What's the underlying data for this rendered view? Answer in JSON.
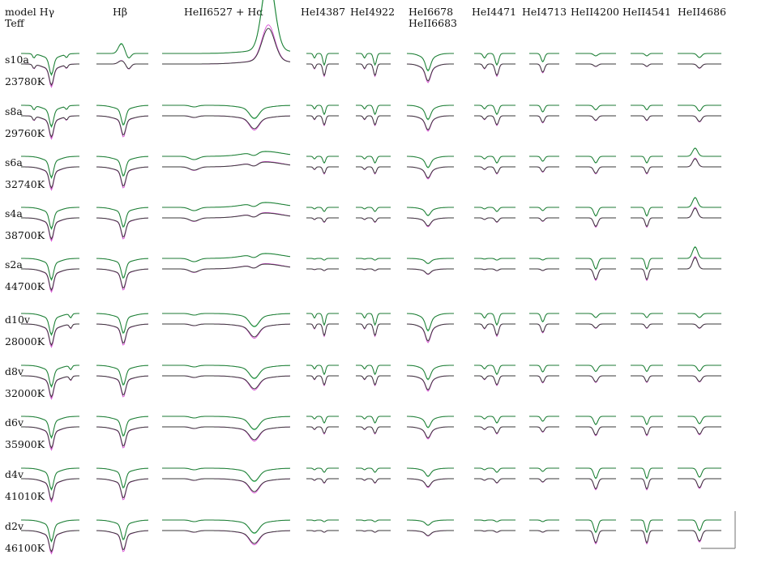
{
  "header": {
    "col0_line1": "model Hγ",
    "col0_line2": "Teff",
    "columns": [
      {
        "key": "hb",
        "label": "Hβ"
      },
      {
        "key": "ha",
        "label": "HeII6527 + Hα"
      },
      {
        "key": "he4387",
        "label": "HeI4387"
      },
      {
        "key": "he4922",
        "label": "HeI4922"
      },
      {
        "key": "he6678",
        "label": "HeI6678",
        "label2": "HeII6683"
      },
      {
        "key": "he4471",
        "label": "HeI4471"
      },
      {
        "key": "he4713",
        "label": "HeI4713"
      },
      {
        "key": "heii4200",
        "label": "HeII4200"
      },
      {
        "key": "heii4541",
        "label": "HeII4541"
      },
      {
        "key": "heii4686",
        "label": "HeII4686"
      }
    ]
  },
  "rows": [
    {
      "model": "s10a",
      "teff": "23780K"
    },
    {
      "model": "s8a",
      "teff": "29760K"
    },
    {
      "model": "s6a",
      "teff": "32740K"
    },
    {
      "model": "s4a",
      "teff": "38700K"
    },
    {
      "model": "s2a",
      "teff": "44700K"
    },
    {
      "model": "d10v",
      "teff": "28000K"
    },
    {
      "model": "d8v",
      "teff": "32000K"
    },
    {
      "model": "d6v",
      "teff": "35900K"
    },
    {
      "model": "d4v",
      "teff": "41010K"
    },
    {
      "model": "d2v",
      "teff": "46100K"
    }
  ],
  "colors": {
    "model_a": "#1d7a34",
    "model_b": "#3a3a3a",
    "model_c": "#d94fd6",
    "scale_bar": "#888888"
  },
  "chart_data": {
    "type": "line",
    "description_units": "normalized flux vs wavelength; each panel shows two stacked spectra (upper offset green, lower black/magenta)",
    "series_names": [],
    "grid": false,
    "legend": "none"
  }
}
